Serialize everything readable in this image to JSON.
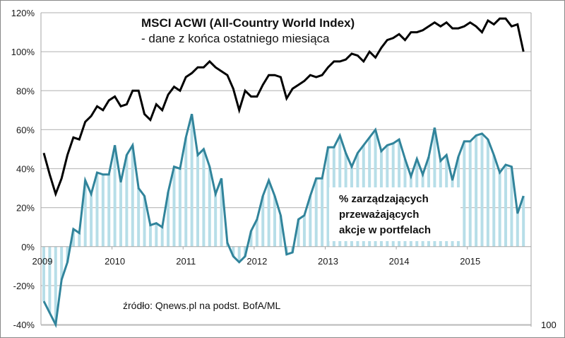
{
  "chart_data": {
    "type": "line",
    "title": "MSCI ACWI (All-Country World Index)",
    "subtitle": "- dane z końca ostatniego miesiąca",
    "annotation": [
      "% zarządzających",
      "przeważających",
      "akcje w portfelach"
    ],
    "source": "źródło: Qnews.pl na podst. BofA/ML",
    "corner_label": "100",
    "xlabel": "",
    "ylabel": "",
    "ylim": [
      -40,
      120
    ],
    "y_ticks": [
      -40,
      -20,
      0,
      20,
      40,
      60,
      80,
      100,
      120
    ],
    "y_tick_labels": [
      "-40%",
      "-20%",
      "0%",
      "20%",
      "40%",
      "60%",
      "80%",
      "100%",
      "120%"
    ],
    "x_tick_labels": [
      "2009",
      "2010",
      "2011",
      "2012",
      "2013",
      "2014",
      "2015"
    ],
    "x_start": "2009-01",
    "frequency": "monthly",
    "grid": "horizontal",
    "series": [
      {
        "name": "MSCI ACWI",
        "style": "line",
        "color": "#000000",
        "values": [
          48,
          37,
          27,
          35,
          47,
          56,
          55,
          64,
          67,
          72,
          70,
          75,
          77,
          72,
          73,
          80,
          80,
          68,
          65,
          73,
          70,
          78,
          82,
          80,
          87,
          89,
          92,
          92,
          95,
          92,
          90,
          88,
          81,
          70,
          80,
          77,
          77,
          83,
          88,
          88,
          87,
          76,
          81,
          83,
          85,
          88,
          87,
          88,
          92,
          95,
          95,
          96,
          99,
          98,
          95,
          100,
          97,
          102,
          106,
          107,
          109,
          106,
          110,
          110,
          111,
          113,
          115,
          113,
          115,
          112,
          112,
          113,
          115,
          113,
          110,
          116,
          114,
          117,
          117,
          113,
          114,
          100
        ]
      },
      {
        "name": "% zarządzających przeważających akcje w portfelach",
        "style": "line+bars",
        "color": "#31849b",
        "bar_color": "#b7dee8",
        "values": [
          -28,
          -34,
          -40,
          -17,
          -8,
          9,
          7,
          34,
          27,
          38,
          37,
          37,
          52,
          33,
          47,
          52,
          30,
          26,
          11,
          12,
          10,
          28,
          41,
          40,
          56,
          68,
          47,
          50,
          41,
          27,
          35,
          2,
          -5,
          -8,
          -5,
          8,
          14,
          26,
          34,
          26,
          16,
          -4,
          -3,
          14,
          16,
          26,
          35,
          35,
          51,
          51,
          57,
          48,
          41,
          48,
          52,
          56,
          60,
          49,
          52,
          53,
          55,
          45,
          36,
          45,
          37,
          46,
          61,
          44,
          47,
          34,
          46,
          54,
          54,
          57,
          58,
          55,
          47,
          38,
          42,
          41,
          17,
          26
        ]
      }
    ]
  }
}
